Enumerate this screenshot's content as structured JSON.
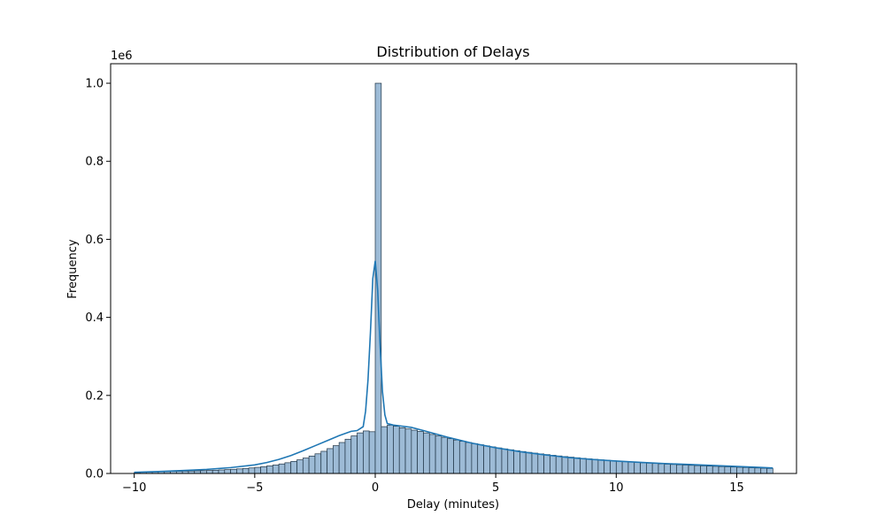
{
  "chart_data": {
    "type": "bar",
    "title": "Distribution of Delays",
    "xlabel": "Delay (minutes)",
    "ylabel": "Frequency",
    "y_offset_text": "1e6",
    "y_scale_factor": 1000000,
    "xlim": [
      -10.98,
      17.48
    ],
    "ylim": [
      0,
      1050000
    ],
    "x_ticks": [
      -10,
      -5,
      0,
      5,
      10,
      15
    ],
    "x_tick_labels": [
      "−10",
      "−5",
      "0",
      "5",
      "10",
      "15"
    ],
    "y_ticks": [
      0,
      200000,
      400000,
      600000,
      800000,
      1000000
    ],
    "y_tick_labels": [
      "0.0",
      "0.2",
      "0.4",
      "0.6",
      "0.8",
      "1.0"
    ],
    "grid": false,
    "colors": {
      "bar_fill": "#9dbbd6",
      "bar_edge": "#1f3344",
      "kde_line": "#1f77b4"
    },
    "bin_start": -10,
    "bin_width": 0.25,
    "bars": [
      2500,
      3200,
      3600,
      4000,
      4400,
      4800,
      5200,
      5600,
      6000,
      6400,
      6800,
      7200,
      7800,
      8400,
      9100,
      9900,
      10800,
      11800,
      12900,
      14200,
      15700,
      17400,
      19400,
      21700,
      24400,
      27500,
      31000,
      35000,
      39600,
      44700,
      50400,
      56800,
      63700,
      71300,
      79400,
      87800,
      96300,
      104000,
      109000,
      107000,
      1000000,
      120000,
      124000,
      121000,
      117000,
      114000,
      111000,
      108000,
      104000,
      100000,
      96300,
      92700,
      89200,
      85800,
      82600,
      79500,
      76500,
      73600,
      70800,
      68100,
      65500,
      63000,
      60700,
      58400,
      56200,
      54100,
      52100,
      50200,
      48400,
      46600,
      44900,
      43300,
      41800,
      40300,
      38900,
      37500,
      36200,
      34900,
      33700,
      32600,
      31500,
      30400,
      29400,
      28400,
      27400,
      26500,
      25600,
      24700,
      23900,
      23100,
      22300,
      21600,
      20900,
      20200,
      19500,
      18900,
      18300,
      17700,
      17100,
      16500,
      15900,
      15300,
      14700,
      14100,
      13500,
      12900
    ],
    "kde": {
      "x": [
        -10,
        -9,
        -8,
        -7,
        -6,
        -5,
        -4.5,
        -4,
        -3.5,
        -3,
        -2.5,
        -2,
        -1.5,
        -1,
        -0.75,
        -0.5,
        -0.4,
        -0.3,
        -0.2,
        -0.1,
        0,
        0.1,
        0.2,
        0.3,
        0.4,
        0.5,
        0.75,
        1,
        1.5,
        2,
        3,
        4,
        5,
        6,
        7,
        8,
        9,
        10,
        11,
        12,
        13,
        14,
        15,
        16,
        16.5
      ],
      "y": [
        3000,
        5000,
        7500,
        10500,
        15000,
        22000,
        28000,
        36000,
        46000,
        58000,
        71000,
        84000,
        97000,
        108000,
        110000,
        120000,
        160000,
        240000,
        360000,
        500000,
        545000,
        470000,
        330000,
        210000,
        150000,
        128000,
        124000,
        122000,
        118000,
        110000,
        93000,
        78000,
        66000,
        56000,
        48000,
        41000,
        36000,
        32000,
        28500,
        25500,
        23000,
        20500,
        18000,
        15500,
        14000
      ]
    }
  }
}
